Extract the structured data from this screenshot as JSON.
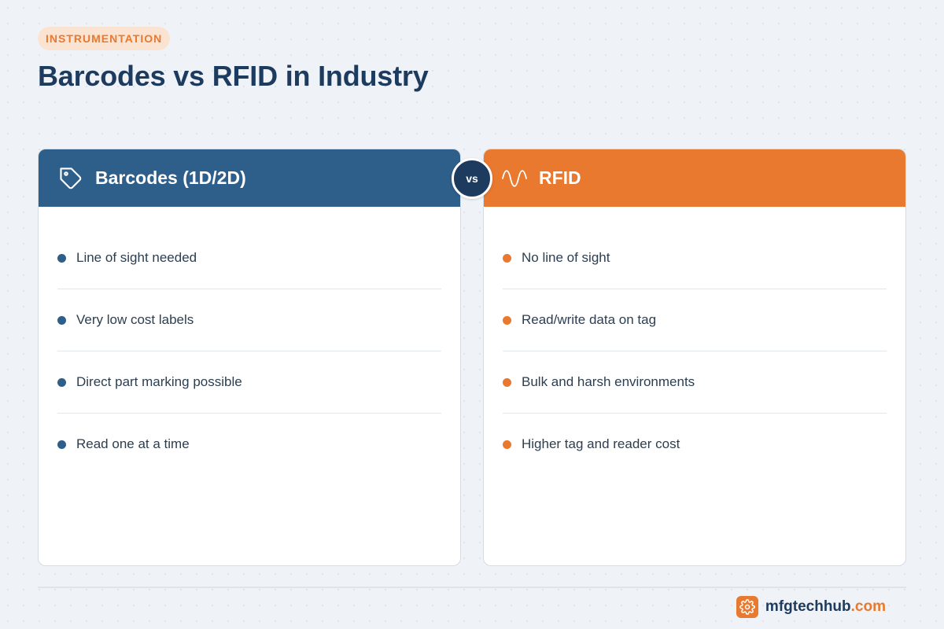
{
  "header": {
    "tag": "INSTRUMENTATION",
    "title": "Barcodes vs RFID in Industry"
  },
  "comparison": {
    "vs_label": "vs",
    "left": {
      "title": "Barcodes (1D/2D)",
      "icon": "tag-icon",
      "accent": "#2e5e8a",
      "items": [
        "Line of sight needed",
        "Very low cost labels",
        "Direct part marking possible",
        "Read one at a time"
      ]
    },
    "right": {
      "title": "RFID",
      "icon": "wave-icon",
      "accent": "#e8792f",
      "items": [
        "No line of sight",
        "Read/write data on tag",
        "Bulk and harsh environments",
        "Higher tag and reader cost"
      ]
    }
  },
  "footer": {
    "brand_icon": "gear-icon",
    "brand_name": "mfgtechhub",
    "brand_tld": ".com"
  }
}
